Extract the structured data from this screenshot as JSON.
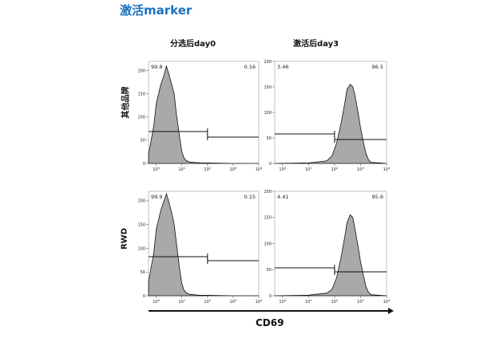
{
  "page_title": "激活marker",
  "column_titles": [
    "分选后day0",
    "激活后day3"
  ],
  "row_titles": [
    "其他品牌",
    "RWD"
  ],
  "x_axis_label": "CD69",
  "colors": {
    "title": "#1b72c0",
    "fill": "#a9a9a9",
    "line": "#111111"
  },
  "chart_data": [
    {
      "type": "area",
      "row": "其他品牌",
      "column": "分选后day0",
      "xscale": "log",
      "xlim": [
        0.5,
        10000
      ],
      "ylim": [
        0,
        220
      ],
      "yticks": [
        0,
        50,
        100,
        150,
        200
      ],
      "xticks": [
        "10^0",
        "10^1",
        "10^2",
        "10^3",
        "10^4"
      ],
      "gates": {
        "left_percent": "99.8",
        "right_percent": "0.16",
        "split": 100
      },
      "x": [
        0.5,
        0.8,
        1,
        1.5,
        2,
        2.5,
        3,
        4,
        5,
        6,
        8,
        10,
        12,
        15,
        20,
        30,
        50,
        100,
        1000,
        10000
      ],
      "values": [
        20,
        80,
        130,
        170,
        190,
        210,
        195,
        170,
        150,
        110,
        60,
        25,
        12,
        6,
        3,
        2,
        1,
        1,
        0,
        0
      ]
    },
    {
      "type": "area",
      "row": "其他品牌",
      "column": "激活后day3",
      "xscale": "log",
      "xlim": [
        0.5,
        10000
      ],
      "ylim": [
        0,
        200
      ],
      "yticks": [
        0,
        50,
        100,
        150,
        200
      ],
      "xticks": [
        "10^0",
        "10^1",
        "10^2",
        "10^3",
        "10^4"
      ],
      "gates": {
        "left_percent": "3.46",
        "right_percent": "96.5",
        "split": 100
      },
      "x": [
        0.5,
        10,
        50,
        80,
        120,
        180,
        250,
        300,
        400,
        500,
        600,
        800,
        1000,
        1300,
        1600,
        2000,
        2500,
        10000
      ],
      "values": [
        0,
        1,
        5,
        15,
        40,
        80,
        120,
        145,
        155,
        150,
        135,
        100,
        70,
        40,
        20,
        8,
        2,
        0
      ]
    },
    {
      "type": "area",
      "row": "RWD",
      "column": "分选后day0",
      "xscale": "log",
      "xlim": [
        0.5,
        10000
      ],
      "ylim": [
        0,
        220
      ],
      "yticks": [
        0,
        50,
        100,
        150,
        200
      ],
      "xticks": [
        "10^0",
        "10^1",
        "10^2",
        "10^3",
        "10^4"
      ],
      "gates": {
        "left_percent": "99.9",
        "right_percent": "0.15",
        "split": 100
      },
      "x": [
        0.5,
        0.8,
        1,
        1.5,
        2,
        2.5,
        3,
        4,
        5,
        6,
        8,
        10,
        12,
        15,
        20,
        30,
        50,
        100,
        1000,
        10000
      ],
      "values": [
        30,
        90,
        140,
        180,
        200,
        215,
        200,
        175,
        150,
        115,
        60,
        25,
        12,
        6,
        3,
        2,
        1,
        1,
        0,
        0
      ]
    },
    {
      "type": "area",
      "row": "RWD",
      "column": "激活后day3",
      "xscale": "log",
      "xlim": [
        0.5,
        10000
      ],
      "ylim": [
        0,
        200
      ],
      "yticks": [
        0,
        50,
        100,
        150,
        200
      ],
      "xticks": [
        "10^0",
        "10^1",
        "10^2",
        "10^3",
        "10^4"
      ],
      "gates": {
        "left_percent": "4.41",
        "right_percent": "95.6",
        "split": 100
      },
      "x": [
        0.5,
        10,
        50,
        80,
        120,
        180,
        250,
        300,
        400,
        500,
        600,
        800,
        1000,
        1300,
        1600,
        2000,
        2500,
        10000
      ],
      "values": [
        0,
        1,
        5,
        12,
        35,
        75,
        115,
        140,
        155,
        150,
        130,
        95,
        65,
        38,
        18,
        7,
        2,
        0
      ]
    }
  ]
}
